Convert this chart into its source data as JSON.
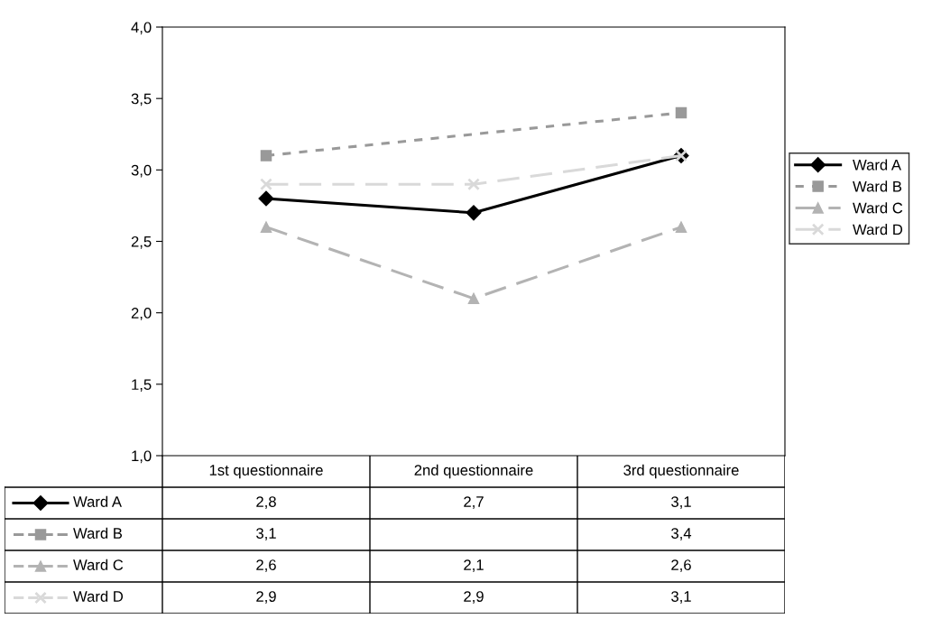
{
  "chart_data": {
    "type": "line",
    "categories": [
      "1st questionnaire",
      "2nd questionnaire",
      "3rd questionnaire"
    ],
    "series": [
      {
        "name": "Ward A",
        "color": "#000000",
        "marker": "diamond",
        "line_style": "solid",
        "values": [
          2.8,
          2.7,
          3.1
        ],
        "value_labels": [
          "2,8",
          "2,7",
          "3,1"
        ]
      },
      {
        "name": "Ward B",
        "color": "#999999",
        "marker": "square",
        "line_style": "dotted",
        "values": [
          3.1,
          null,
          3.4
        ],
        "value_labels": [
          "3,1",
          null,
          "3,4"
        ]
      },
      {
        "name": "Ward C",
        "color": "#b3b3b3",
        "marker": "triangle",
        "line_style": "dashed",
        "values": [
          2.6,
          2.1,
          2.6
        ],
        "value_labels": [
          "2,6",
          "2,1",
          "2,6"
        ]
      },
      {
        "name": "Ward D",
        "color": "#d9d9d9",
        "marker": "cross",
        "line_style": "dashed",
        "values": [
          2.9,
          2.9,
          3.1
        ],
        "value_labels": [
          "2,9",
          "2,9",
          "3,1"
        ]
      }
    ],
    "ylim": [
      1.0,
      4.0
    ],
    "yticks": [
      {
        "value": 1.0,
        "label": "1,0"
      },
      {
        "value": 1.5,
        "label": "1,5"
      },
      {
        "value": 2.0,
        "label": "2,0"
      },
      {
        "value": 2.5,
        "label": "2,5"
      },
      {
        "value": 3.0,
        "label": "3,0"
      },
      {
        "value": 3.5,
        "label": "3,5"
      },
      {
        "value": 4.0,
        "label": "4,0"
      }
    ],
    "grid": false,
    "legend": "right"
  }
}
